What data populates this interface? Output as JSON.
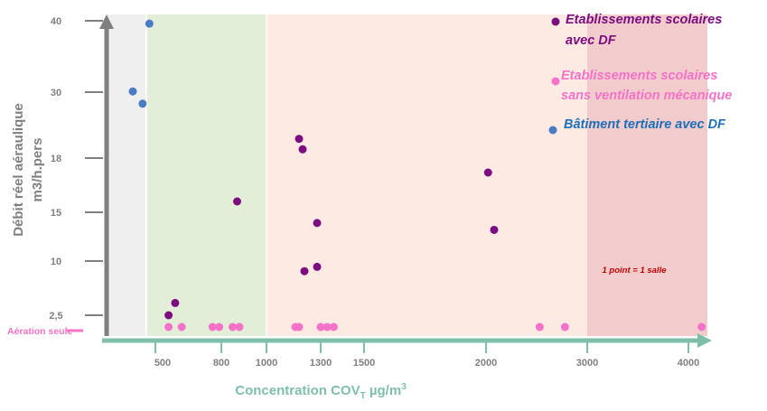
{
  "chart_data": {
    "type": "scatter",
    "xlabel": "Concentration COV",
    "xlabel_sub": "T",
    "xlabel_unit": " µg/m",
    "xlabel_sup": "3",
    "ylabel_line1": "Débit réel aéraulique",
    "ylabel_line2": "m3/h.pers",
    "x_ticks": [
      "500",
      "800",
      "1000",
      "1300",
      "1500",
      "2000",
      "3000",
      "4000"
    ],
    "y_ticks": [
      "40",
      "30",
      "18",
      "15",
      "10",
      "2,5"
    ],
    "y_extra_label": "Aération seule",
    "zones": [
      {
        "name": "zone-1",
        "from": null,
        "to": 380,
        "color": "#efefef"
      },
      {
        "name": "zone-2",
        "from": 380,
        "to": 1000,
        "color": "#e3eed8"
      },
      {
        "name": "zone-3",
        "from": 1000,
        "to": 3000,
        "color": "#fdeae3"
      },
      {
        "name": "zone-4",
        "from": 3000,
        "to": 4100,
        "color": "#f2cccc"
      }
    ],
    "annotation": "1 point = 1 salle",
    "series": [
      {
        "name": "Etablissements scolaires avec DF",
        "label_lines": [
          "Etablissements scolaires",
          "avec DF"
        ],
        "color": "#7b0d80",
        "points": [
          {
            "x": 560,
            "y": 2.5
          },
          {
            "x": 590,
            "y": 4.2
          },
          {
            "x": 870,
            "y": 15.6
          },
          {
            "x": 1180,
            "y": 21.5
          },
          {
            "x": 1200,
            "y": 19.6
          },
          {
            "x": 1210,
            "y": 8.6
          },
          {
            "x": 1280,
            "y": 13.9
          },
          {
            "x": 1280,
            "y": 9.2
          },
          {
            "x": 2020,
            "y": 17.2
          },
          {
            "x": 2080,
            "y": 13.2
          }
        ]
      },
      {
        "name": "Etablissements scolaires sans ventilation mécanique",
        "label_lines": [
          "Etablissements scolaires",
          "sans ventilation mécanique"
        ],
        "color": "#f472c8",
        "points": [
          {
            "x": 560,
            "y": 0
          },
          {
            "x": 620,
            "y": 0
          },
          {
            "x": 760,
            "y": 0
          },
          {
            "x": 790,
            "y": 0
          },
          {
            "x": 850,
            "y": 0
          },
          {
            "x": 880,
            "y": 0
          },
          {
            "x": 1160,
            "y": 0
          },
          {
            "x": 1180,
            "y": 0
          },
          {
            "x": 1300,
            "y": 0
          },
          {
            "x": 1330,
            "y": 0
          },
          {
            "x": 1360,
            "y": 0
          },
          {
            "x": 2530,
            "y": 0
          },
          {
            "x": 2780,
            "y": 0
          },
          {
            "x": 4070,
            "y": 0
          }
        ]
      },
      {
        "name": "Bâtiment tertiaire avec DF",
        "label_lines": [
          "Bâtiment tertiaire avec DF"
        ],
        "color": "#4a7cc4",
        "points": [
          {
            "x": 420,
            "y": 39.6
          },
          {
            "x": 200,
            "y": 30.1
          },
          {
            "x": 330,
            "y": 27.9
          }
        ]
      }
    ]
  }
}
